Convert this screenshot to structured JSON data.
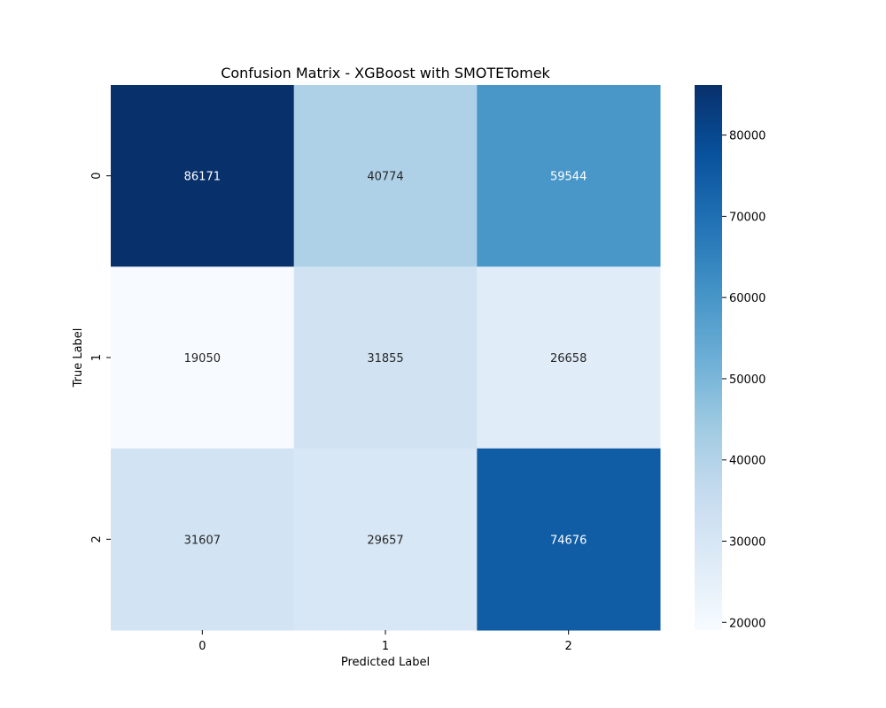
{
  "chart_data": {
    "type": "heatmap",
    "title": "Confusion Matrix - XGBoost with SMOTETomek",
    "xlabel": "Predicted Label",
    "ylabel": "True Label",
    "x_categories": [
      "0",
      "1",
      "2"
    ],
    "y_categories": [
      "0",
      "1",
      "2"
    ],
    "values": [
      [
        86171,
        40774,
        59544
      ],
      [
        19050,
        31855,
        26658
      ],
      [
        31607,
        29657,
        74676
      ]
    ],
    "colormap": "Blues",
    "colorbar": {
      "range": [
        19050,
        86171
      ],
      "ticks": [
        20000,
        30000,
        40000,
        50000,
        60000,
        70000,
        80000
      ]
    }
  }
}
